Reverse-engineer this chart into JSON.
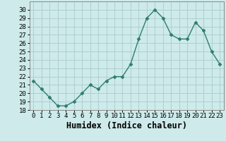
{
  "x": [
    0,
    1,
    2,
    3,
    4,
    5,
    6,
    7,
    8,
    9,
    10,
    11,
    12,
    13,
    14,
    15,
    16,
    17,
    18,
    19,
    20,
    21,
    22,
    23
  ],
  "y": [
    21.5,
    20.5,
    19.5,
    18.5,
    18.5,
    19.0,
    20.0,
    21.0,
    20.5,
    21.5,
    22.0,
    22.0,
    23.5,
    26.5,
    29.0,
    30.0,
    29.0,
    27.0,
    26.5,
    26.5,
    28.5,
    27.5,
    25.0,
    23.5
  ],
  "xlabel": "Humidex (Indice chaleur)",
  "line_color": "#2e7d6e",
  "marker": "D",
  "marker_size": 2.5,
  "bg_color": "#ceeaea",
  "grid_color": "#aed0d0",
  "ylim": [
    18,
    31
  ],
  "xlim": [
    -0.5,
    23.5
  ],
  "yticks": [
    18,
    19,
    20,
    21,
    22,
    23,
    24,
    25,
    26,
    27,
    28,
    29,
    30
  ],
  "xticks": [
    0,
    1,
    2,
    3,
    4,
    5,
    6,
    7,
    8,
    9,
    10,
    11,
    12,
    13,
    14,
    15,
    16,
    17,
    18,
    19,
    20,
    21,
    22,
    23
  ],
  "tick_fontsize": 6.5,
  "xlabel_fontsize": 8.5
}
